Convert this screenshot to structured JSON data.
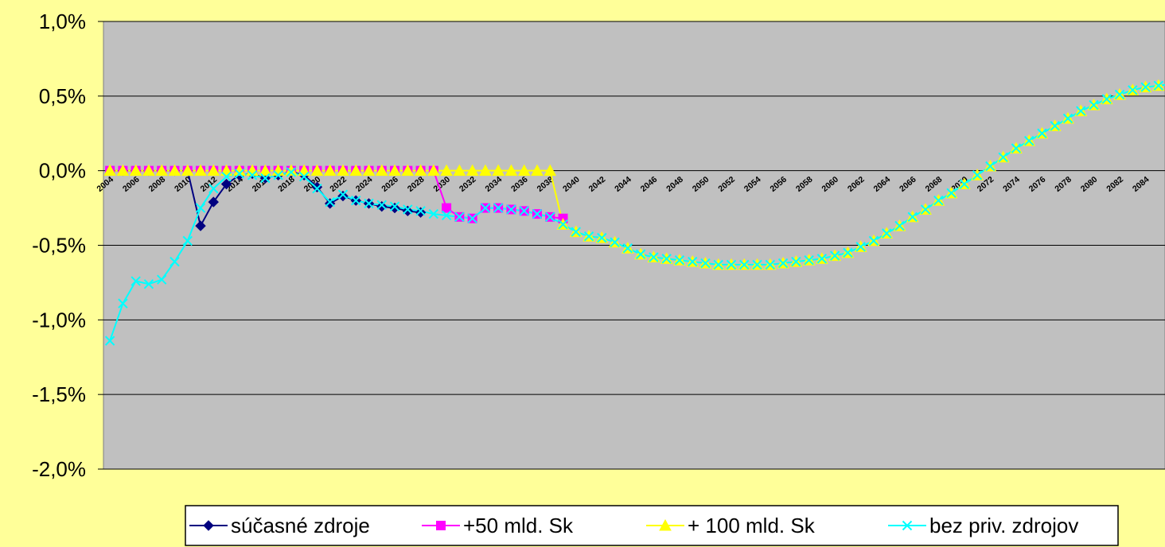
{
  "colors": {
    "background": "#FFFF99",
    "plot_area": "#C0C0C0",
    "gridline": "#000000",
    "series": [
      "#000080",
      "#FF00FF",
      "#FFFF00",
      "#00FFFF"
    ]
  },
  "chart_data": {
    "type": "line",
    "title": "",
    "xlabel": "",
    "ylabel": "",
    "ylim": [
      -0.02,
      0.01
    ],
    "y_ticks": [
      {
        "value": 0.01,
        "label": "1,0%"
      },
      {
        "value": 0.005,
        "label": "0,5%"
      },
      {
        "value": 0.0,
        "label": "0,0%"
      },
      {
        "value": -0.005,
        "label": "-0,5%"
      },
      {
        "value": -0.01,
        "label": "-1,0%"
      },
      {
        "value": -0.015,
        "label": "-1,5%"
      },
      {
        "value": -0.02,
        "label": "-2,0%"
      }
    ],
    "x_tick_labels": [
      "2004",
      "2006",
      "2008",
      "2010",
      "2012",
      "2014",
      "2016",
      "2018",
      "2020",
      "2022",
      "2024",
      "2026",
      "2028",
      "2030",
      "2032",
      "2034",
      "2036",
      "2038",
      "2040",
      "2042",
      "2044",
      "2046",
      "2048",
      "2050",
      "2052",
      "2054",
      "2056",
      "2058",
      "2060",
      "2062",
      "2064",
      "2066",
      "2068",
      "2070",
      "2072",
      "2074",
      "2076",
      "2078",
      "2080",
      "2082",
      "2084"
    ],
    "x_range": [
      2004,
      2085
    ],
    "grid": {
      "horizontal": true,
      "vertical": false
    },
    "legend_position": "bottom",
    "series": [
      {
        "name": "súčasné zdroje",
        "marker": "diamond",
        "color": "#000080",
        "start_year": 2004,
        "values": [
          0,
          0,
          0,
          0,
          0,
          0,
          0,
          -0.0037,
          -0.0021,
          -0.0009,
          -0.0003,
          -0.0002,
          -0.0005,
          -0.0003,
          -0.0001,
          -0.0003,
          -0.0011,
          -0.0022,
          -0.0017,
          -0.002,
          -0.0022,
          -0.0024,
          -0.0025,
          -0.0027,
          -0.0028
        ]
      },
      {
        "name": "+50 mld. Sk",
        "marker": "square",
        "color": "#FF00FF",
        "start_year": 2004,
        "values": [
          0,
          0,
          0,
          0,
          0,
          0,
          0,
          0,
          0,
          0,
          0,
          0,
          0,
          0,
          0,
          0,
          0,
          0,
          0,
          0,
          0,
          0,
          0,
          0,
          0,
          0,
          -0.0025,
          -0.0031,
          -0.0032,
          -0.0025,
          -0.0025,
          -0.0026,
          -0.0027,
          -0.0029,
          -0.0031,
          -0.0032
        ]
      },
      {
        "name": "+ 100 mld. Sk",
        "marker": "triangle",
        "color": "#FFFF00",
        "start_year": 2004,
        "values": [
          0,
          0,
          0,
          0,
          0,
          0,
          0,
          0,
          0,
          0,
          0,
          0,
          0,
          0,
          0,
          0,
          0,
          0,
          0,
          0,
          0,
          0,
          0,
          0,
          0,
          0,
          0,
          0,
          0,
          0,
          0,
          0,
          0,
          0,
          0,
          -0.0036,
          -0.0041,
          -0.0044,
          -0.0045,
          -0.0048,
          -0.0052,
          -0.0056,
          -0.0058,
          -0.0059,
          -0.006,
          -0.0061,
          -0.0062,
          -0.0063,
          -0.0063,
          -0.0063,
          -0.0063,
          -0.0063,
          -0.0062,
          -0.0061,
          -0.006,
          -0.0059,
          -0.0057,
          -0.0055,
          -0.0051,
          -0.0047,
          -0.0042,
          -0.0037,
          -0.0031,
          -0.0026,
          -0.002,
          -0.0015,
          -0.0009,
          -0.0003,
          0.0003,
          0.0009,
          0.0015,
          0.002,
          0.0025,
          0.003,
          0.0035,
          0.004,
          0.0044,
          0.0048,
          0.0051,
          0.0054,
          0.0056,
          0.0057,
          0.0058
        ]
      },
      {
        "name": "bez priv. zdrojov",
        "marker": "x",
        "color": "#00FFFF",
        "start_year": 2004,
        "values": [
          -0.0114,
          -0.0089,
          -0.0074,
          -0.0076,
          -0.0073,
          -0.0061,
          -0.0047,
          -0.0025,
          -0.0012,
          -0.0004,
          -0.0002,
          -0.0003,
          -0.0005,
          -0.0003,
          -0.0001,
          -0.0004,
          -0.0012,
          -0.0021,
          -0.0016,
          -0.002,
          -0.0022,
          -0.0023,
          -0.0024,
          -0.0026,
          -0.0027,
          -0.0029,
          -0.003,
          -0.0031,
          -0.0032,
          -0.0025,
          -0.0025,
          -0.0026,
          -0.0027,
          -0.0029,
          -0.0031,
          -0.0036,
          -0.0041,
          -0.0044,
          -0.0045,
          -0.0048,
          -0.0052,
          -0.0056,
          -0.0058,
          -0.0059,
          -0.006,
          -0.0061,
          -0.0062,
          -0.0063,
          -0.0063,
          -0.0063,
          -0.0063,
          -0.0063,
          -0.0062,
          -0.0061,
          -0.006,
          -0.0059,
          -0.0057,
          -0.0055,
          -0.0051,
          -0.0047,
          -0.0042,
          -0.0037,
          -0.0031,
          -0.0026,
          -0.002,
          -0.0015,
          -0.0009,
          -0.0003,
          0.0003,
          0.0009,
          0.0015,
          0.002,
          0.0025,
          0.003,
          0.0035,
          0.004,
          0.0044,
          0.0048,
          0.0051,
          0.0054,
          0.0056,
          0.0057,
          0.0058
        ]
      }
    ]
  }
}
